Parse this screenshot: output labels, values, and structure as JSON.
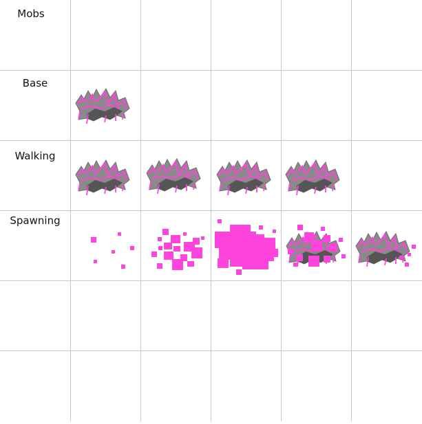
{
  "sheet": {
    "title": "Mobs",
    "rows": [
      {
        "label": "Base",
        "frames": 1
      },
      {
        "label": "Walking",
        "frames": 4
      },
      {
        "label": "Spawning",
        "frames": 5
      },
      {
        "label": "",
        "frames": 0
      },
      {
        "label": "",
        "frames": 0
      }
    ]
  },
  "colors": {
    "grid": "#c8c8c8",
    "sprite_pink": "#ff44dd",
    "sprite_grey": "#8a8a8a",
    "sprite_dark": "#555555",
    "sprite_outline": "#6e6e6e"
  },
  "sprites": {
    "base": "spiky-mob-sprite",
    "particle": "pink-spawn-particle"
  }
}
